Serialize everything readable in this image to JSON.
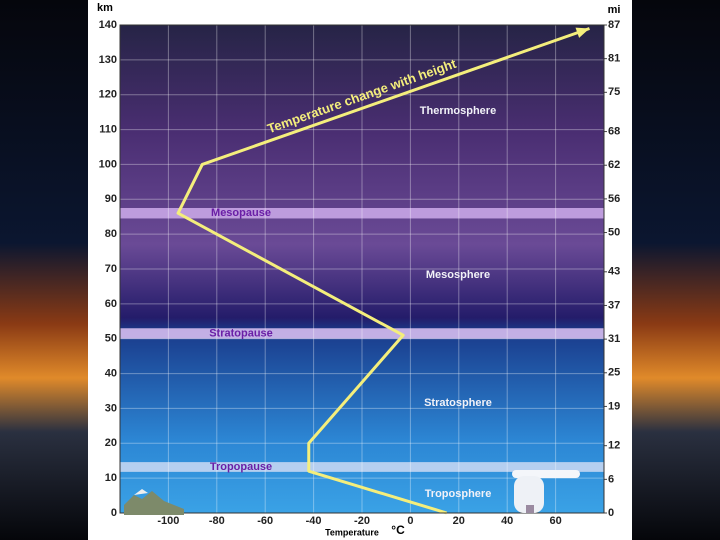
{
  "chart_data": {
    "type": "line",
    "x_label": "Temperature",
    "x_unit": "°C",
    "y_label": "km",
    "y2_label": "mi",
    "annotation": "Temperature change with height",
    "x": [
      15,
      -42,
      -42,
      -3,
      -96,
      -86,
      74
    ],
    "values": [
      0,
      12,
      20,
      51,
      86,
      100,
      139
    ],
    "color": "#f4ee7c",
    "xlim": [
      -120,
      80
    ],
    "xticks": [
      -100,
      -80,
      -60,
      -40,
      -20,
      0,
      20,
      40,
      60
    ],
    "ylim": [
      0,
      140
    ],
    "yticks": [
      0,
      10,
      20,
      30,
      40,
      50,
      60,
      70,
      80,
      90,
      100,
      110,
      120,
      130,
      140
    ],
    "y2lim": [
      0,
      87
    ],
    "y2ticks": [
      0,
      6,
      12,
      19,
      25,
      31,
      37,
      43,
      50,
      56,
      62,
      68,
      75,
      81,
      87
    ],
    "grid": true,
    "bands": [
      {
        "label": "Mesopause",
        "from": 84.5,
        "to": 87.5,
        "color": "#c9a6e6"
      },
      {
        "label": "Stratopause",
        "from": 50,
        "to": 53,
        "color": "#d6bdee"
      },
      {
        "label": "Tropopause",
        "from": 11.8,
        "to": 14.6,
        "color": "#c4d6f2"
      }
    ],
    "regions": [
      "Thermosphere",
      "Mesosphere",
      "Stratosphere",
      "Troposphere"
    ]
  }
}
